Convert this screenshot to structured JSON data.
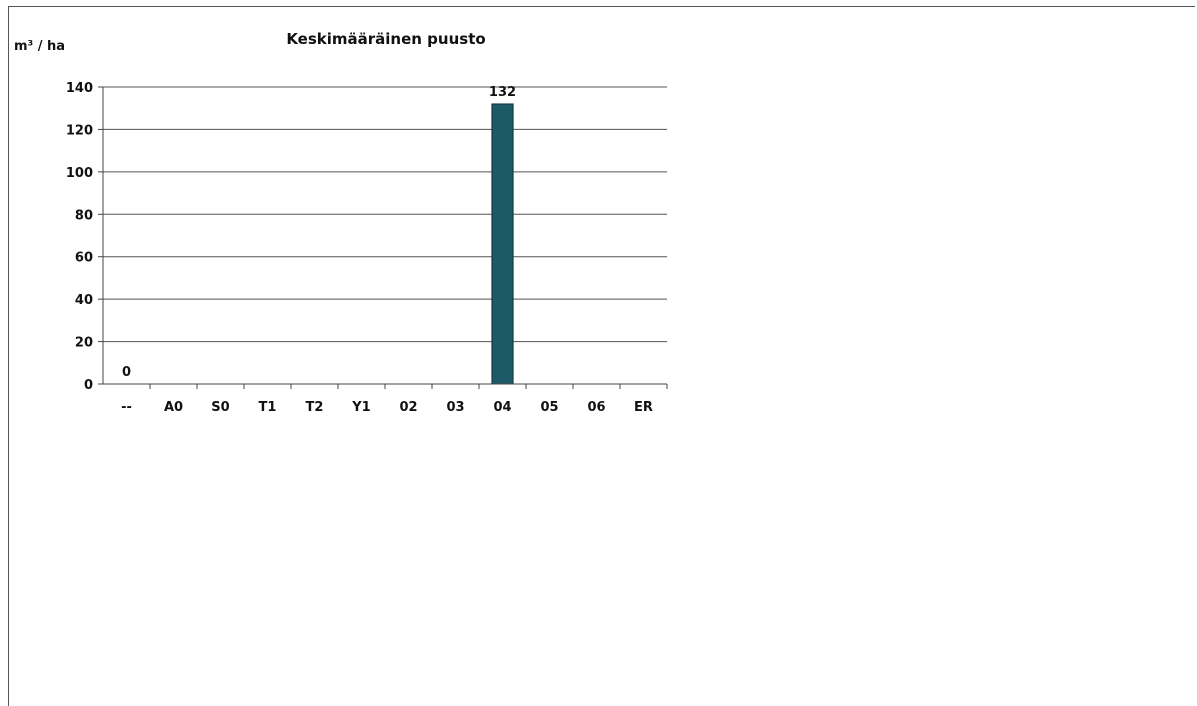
{
  "chart_data": {
    "type": "bar",
    "title": "Keskimääräinen puusto",
    "ylabel": "m³ / ha",
    "xlabel": "",
    "categories": [
      "--",
      "A0",
      "S0",
      "T1",
      "T2",
      "Y1",
      "02",
      "03",
      "04",
      "05",
      "06",
      "ER"
    ],
    "values": [
      0,
      null,
      null,
      null,
      null,
      null,
      null,
      null,
      132,
      null,
      null,
      null
    ],
    "data_labels": [
      "0",
      "",
      "",
      "",
      "",
      "",
      "",
      "",
      "132",
      "",
      "",
      ""
    ],
    "ylim": [
      0,
      140
    ],
    "yticks": [
      "0",
      "20",
      "40",
      "60",
      "80",
      "100",
      "120",
      "140"
    ],
    "grid": true,
    "bar_color": "#1d5a68",
    "legend": "none"
  }
}
